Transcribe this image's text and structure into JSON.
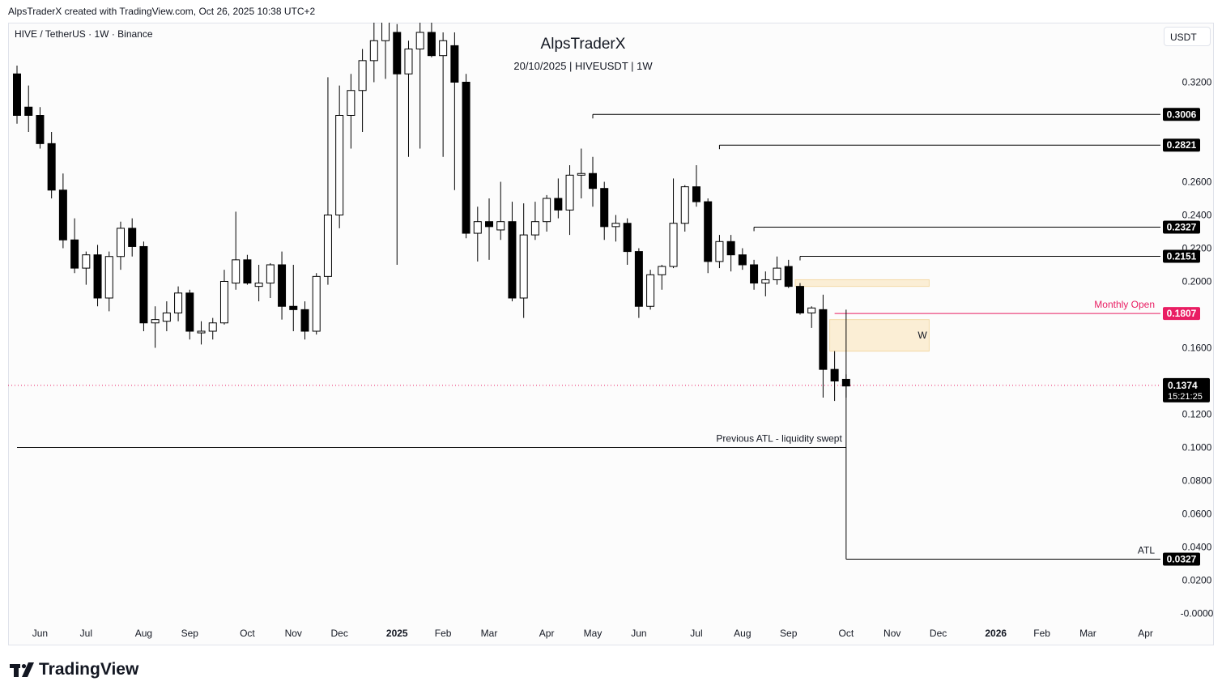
{
  "header": {
    "created_by": "AlpsTraderX created with TradingView.com, Oct 26, 2025 10:38 UTC+2"
  },
  "legend": {
    "symbol_line": "HIVE / TetherUS · 1W · Binance",
    "currency_button": "USDT"
  },
  "watermark": {
    "title": "AlpsTraderX",
    "subtitle": "20/10/2025  |  HIVEUSDT  |  1W"
  },
  "branding": {
    "logo_text": "TradingView",
    "logo_icon": "tradingview-logo-icon"
  },
  "colors": {
    "up_body": "#ffffff",
    "down_body": "#000000",
    "wick": "#000000",
    "monthly_open": "#e91e63",
    "zone_fill": "#fbe9c8",
    "zone_stroke": "#f3d9a6",
    "current_price_line": "#e91e63"
  },
  "chart_data": {
    "type": "candlestick",
    "symbol": "HIVEUSDT",
    "interval": "1W",
    "exchange": "Binance",
    "ylim": [
      -0.0,
      0.34
    ],
    "y_ticks": [
      "0.3200",
      "0.2600",
      "0.2400",
      "0.2200",
      "0.2000",
      "0.1600",
      "0.1200",
      "0.1000",
      "0.0800",
      "0.0600",
      "0.0400",
      "0.0200",
      "-0.0000"
    ],
    "x_labels": [
      {
        "label": "Jun",
        "week": 2
      },
      {
        "label": "Jul",
        "week": 6
      },
      {
        "label": "Aug",
        "week": 11
      },
      {
        "label": "Sep",
        "week": 15
      },
      {
        "label": "Oct",
        "week": 20
      },
      {
        "label": "Nov",
        "week": 24
      },
      {
        "label": "Dec",
        "week": 28
      },
      {
        "label": "2025",
        "week": 33
      },
      {
        "label": "Feb",
        "week": 37
      },
      {
        "label": "Mar",
        "week": 41
      },
      {
        "label": "Apr",
        "week": 46
      },
      {
        "label": "May",
        "week": 50
      },
      {
        "label": "Jun",
        "week": 54
      },
      {
        "label": "Jul",
        "week": 59
      },
      {
        "label": "Aug",
        "week": 63
      },
      {
        "label": "Sep",
        "week": 67
      },
      {
        "label": "Oct",
        "week": 72
      },
      {
        "label": "Nov",
        "week": 76
      },
      {
        "label": "Dec",
        "week": 80
      },
      {
        "label": "2026",
        "week": 85
      },
      {
        "label": "Feb",
        "week": 89
      },
      {
        "label": "Mar",
        "week": 93
      },
      {
        "label": "Apr",
        "week": 98
      }
    ],
    "candles": [
      [
        0.325,
        0.33,
        0.295,
        0.3
      ],
      [
        0.305,
        0.318,
        0.29,
        0.3
      ],
      [
        0.3,
        0.305,
        0.28,
        0.283
      ],
      [
        0.283,
        0.29,
        0.25,
        0.255
      ],
      [
        0.255,
        0.265,
        0.22,
        0.225
      ],
      [
        0.225,
        0.238,
        0.205,
        0.208
      ],
      [
        0.208,
        0.218,
        0.198,
        0.216
      ],
      [
        0.216,
        0.222,
        0.185,
        0.19
      ],
      [
        0.19,
        0.218,
        0.182,
        0.215
      ],
      [
        0.215,
        0.236,
        0.207,
        0.232
      ],
      [
        0.232,
        0.238,
        0.215,
        0.221
      ],
      [
        0.221,
        0.224,
        0.17,
        0.175
      ],
      [
        0.175,
        0.185,
        0.16,
        0.177
      ],
      [
        0.176,
        0.188,
        0.17,
        0.181
      ],
      [
        0.181,
        0.197,
        0.176,
        0.193
      ],
      [
        0.193,
        0.195,
        0.165,
        0.17
      ],
      [
        0.169,
        0.176,
        0.162,
        0.17
      ],
      [
        0.17,
        0.178,
        0.165,
        0.175
      ],
      [
        0.175,
        0.207,
        0.174,
        0.2
      ],
      [
        0.199,
        0.242,
        0.195,
        0.213
      ],
      [
        0.213,
        0.216,
        0.198,
        0.199
      ],
      [
        0.197,
        0.21,
        0.188,
        0.199
      ],
      [
        0.199,
        0.211,
        0.19,
        0.21
      ],
      [
        0.21,
        0.218,
        0.177,
        0.185
      ],
      [
        0.185,
        0.21,
        0.17,
        0.183
      ],
      [
        0.183,
        0.188,
        0.165,
        0.17
      ],
      [
        0.17,
        0.205,
        0.168,
        0.203
      ],
      [
        0.203,
        0.323,
        0.198,
        0.24
      ],
      [
        0.24,
        0.318,
        0.232,
        0.3
      ],
      [
        0.3,
        0.325,
        0.28,
        0.315
      ],
      [
        0.315,
        0.34,
        0.29,
        0.333
      ],
      [
        0.333,
        0.37,
        0.32,
        0.345
      ],
      [
        0.345,
        0.38,
        0.322,
        0.38
      ],
      [
        0.35,
        0.355,
        0.21,
        0.325
      ],
      [
        0.325,
        0.345,
        0.275,
        0.34
      ],
      [
        0.34,
        0.36,
        0.28,
        0.35
      ],
      [
        0.35,
        0.365,
        0.335,
        0.336
      ],
      [
        0.336,
        0.35,
        0.275,
        0.345
      ],
      [
        0.342,
        0.35,
        0.255,
        0.32
      ],
      [
        0.32,
        0.325,
        0.226,
        0.229
      ],
      [
        0.229,
        0.245,
        0.212,
        0.236
      ],
      [
        0.236,
        0.25,
        0.213,
        0.233
      ],
      [
        0.231,
        0.26,
        0.225,
        0.236
      ],
      [
        0.236,
        0.248,
        0.188,
        0.19
      ],
      [
        0.19,
        0.247,
        0.178,
        0.228
      ],
      [
        0.228,
        0.248,
        0.225,
        0.236
      ],
      [
        0.236,
        0.252,
        0.23,
        0.25
      ],
      [
        0.25,
        0.262,
        0.238,
        0.243
      ],
      [
        0.243,
        0.27,
        0.228,
        0.264
      ],
      [
        0.264,
        0.28,
        0.25,
        0.265
      ],
      [
        0.265,
        0.275,
        0.245,
        0.256
      ],
      [
        0.256,
        0.26,
        0.225,
        0.233
      ],
      [
        0.233,
        0.24,
        0.224,
        0.235
      ],
      [
        0.235,
        0.238,
        0.21,
        0.218
      ],
      [
        0.218,
        0.22,
        0.178,
        0.185
      ],
      [
        0.185,
        0.207,
        0.183,
        0.204
      ],
      [
        0.204,
        0.21,
        0.195,
        0.209
      ],
      [
        0.209,
        0.262,
        0.208,
        0.235
      ],
      [
        0.235,
        0.258,
        0.23,
        0.257
      ],
      [
        0.257,
        0.27,
        0.245,
        0.248
      ],
      [
        0.248,
        0.25,
        0.205,
        0.212
      ],
      [
        0.212,
        0.228,
        0.208,
        0.224
      ],
      [
        0.224,
        0.228,
        0.206,
        0.216
      ],
      [
        0.216,
        0.22,
        0.207,
        0.21
      ],
      [
        0.21,
        0.213,
        0.195,
        0.199
      ],
      [
        0.199,
        0.206,
        0.191,
        0.201
      ],
      [
        0.201,
        0.215,
        0.198,
        0.208
      ],
      [
        0.209,
        0.213,
        0.196,
        0.197
      ],
      [
        0.197,
        0.199,
        0.18,
        0.181
      ],
      [
        0.181,
        0.185,
        0.172,
        0.184
      ],
      [
        0.183,
        0.192,
        0.13,
        0.147
      ],
      [
        0.147,
        0.158,
        0.128,
        0.14
      ],
      [
        0.141,
        0.144,
        0.13,
        0.137
      ]
    ],
    "levels": [
      {
        "price": 0.3006,
        "label": "0.3006",
        "start_week": 50,
        "color": "#000000"
      },
      {
        "price": 0.2821,
        "label": "0.2821",
        "start_week": 61,
        "color": "#000000"
      },
      {
        "price": 0.2327,
        "label": "0.2327",
        "start_week": 64,
        "color": "#000000"
      },
      {
        "price": 0.2151,
        "label": "0.2151",
        "start_week": 68,
        "color": "#000000"
      },
      {
        "price": 0.1807,
        "label": "0.1807",
        "start_week": 71,
        "color": "#e91e63",
        "annotation": "Monthly Open"
      },
      {
        "price": 0.0327,
        "label": "0.0327",
        "start_week": 72,
        "color": "#000000",
        "annotation": "ATL"
      },
      {
        "price": 0.1,
        "label": "",
        "start_week": 0,
        "end_week": 72,
        "color": "#000000",
        "annotation": "Previous ATL - liquidity swept"
      }
    ],
    "current_price": {
      "value": 0.1374,
      "label": "0.1374",
      "countdown": "15:21:25"
    },
    "zones": [
      {
        "y_top": 0.201,
        "y_bottom": 0.197,
        "from_week": 68,
        "to_week": 79,
        "label": ""
      },
      {
        "y_top": 0.177,
        "y_bottom": 0.158,
        "from_week": 71,
        "to_week": 79,
        "label": "W"
      }
    ]
  }
}
